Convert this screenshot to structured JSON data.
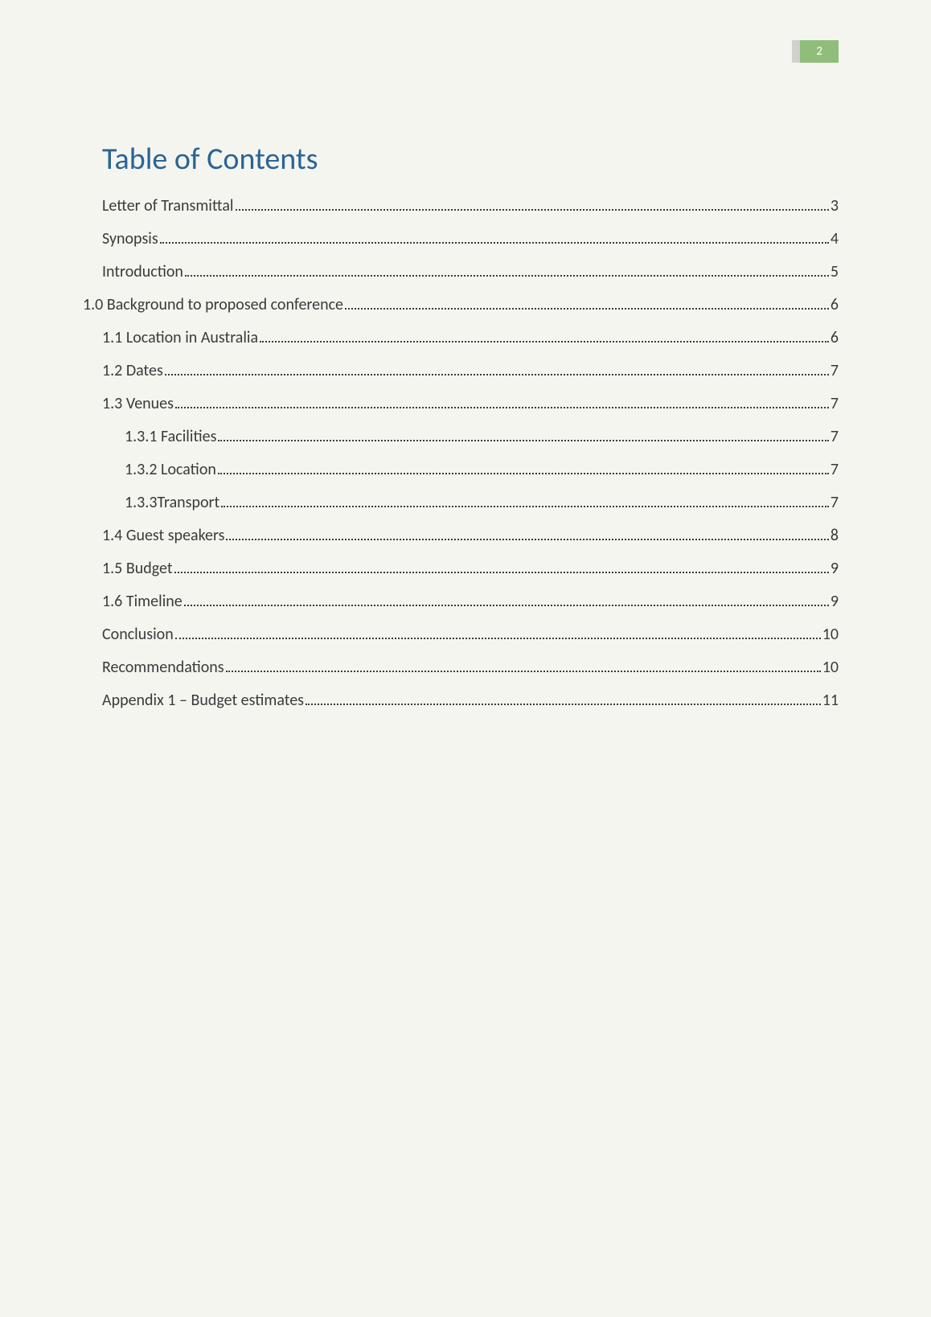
{
  "page_number": "2",
  "title": "Table of Contents",
  "title_color": "#2a6496",
  "text_color": "#3a3a3a",
  "badge_bg": "#8fbd7a",
  "badge_left_bg": "#d0d0cc",
  "badge_text_color": "#ffffff",
  "background_color": "#f5f5f0",
  "title_fontsize": 38,
  "entry_fontsize": 20,
  "entries": [
    {
      "label": "Letter of Transmittal",
      "page": "3",
      "level": 1
    },
    {
      "label": "Synopsis",
      "page": "4",
      "level": 1
    },
    {
      "label": "Introduction",
      "page": "5",
      "level": 1
    },
    {
      "label": "1.0 Background to proposed conference",
      "page": "6",
      "level": 0
    },
    {
      "label": "1.1 Location in Australia",
      "page": "6",
      "level": 1
    },
    {
      "label": "1.2 Dates",
      "page": "7",
      "level": 1
    },
    {
      "label": "1.3 Venues",
      "page": "7",
      "level": 1
    },
    {
      "label": "1.3.1 Facilities",
      "page": "7",
      "level": 2
    },
    {
      "label": "1.3.2 Location",
      "page": "7",
      "level": 2
    },
    {
      "label": "1.3.3Transport",
      "page": "7",
      "level": 2
    },
    {
      "label": "1.4 Guest speakers",
      "page": "8",
      "level": 1
    },
    {
      "label": "1.5 Budget",
      "page": "9",
      "level": 1
    },
    {
      "label": "1.6 Timeline",
      "page": "9",
      "level": 1
    },
    {
      "label": "Conclusion",
      "page": "10",
      "level": 1
    },
    {
      "label": "Recommendations",
      "page": "10",
      "level": 1
    },
    {
      "label": "Appendix 1 – Budget estimates",
      "page": "11",
      "level": 1
    }
  ]
}
